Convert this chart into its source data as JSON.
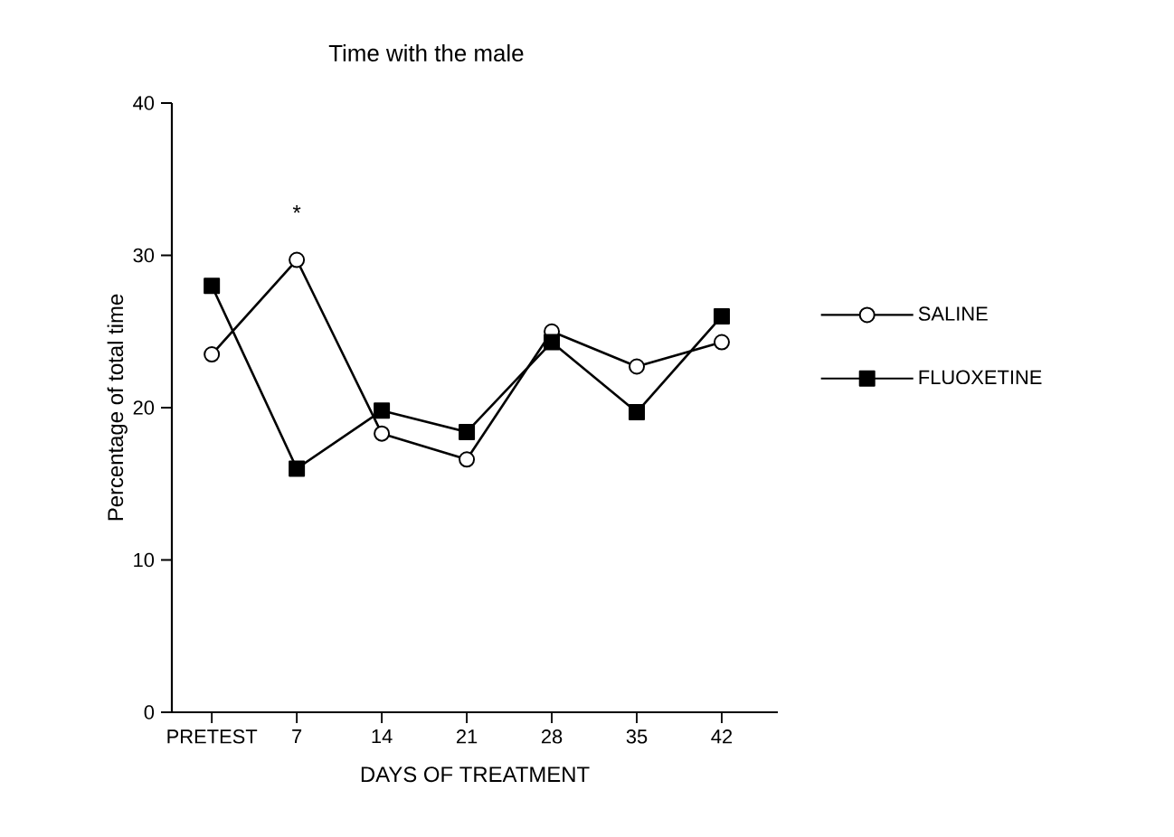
{
  "chart_data": {
    "type": "line",
    "title": "Time with the male",
    "xlabel": "DAYS OF TREATMENT",
    "ylabel": "Percentage of total time",
    "categories": [
      "PRETEST",
      "7",
      "14",
      "21",
      "28",
      "35",
      "42"
    ],
    "series": [
      {
        "name": "SALINE",
        "color": "#000000",
        "marker": "circle",
        "values": [
          23.5,
          29.7,
          18.3,
          16.6,
          25,
          22.7,
          24.3
        ]
      },
      {
        "name": "FLUOXETINE",
        "color": "#000000",
        "marker": "square",
        "values": [
          28,
          16,
          19.8,
          18.4,
          24.3,
          19.7,
          26
        ]
      }
    ],
    "ylim": [
      0,
      40
    ],
    "yticks": [
      0,
      10,
      20,
      30,
      40
    ],
    "grid": false,
    "legend": "right",
    "line_style": "solid",
    "annotations": [
      "*"
    ]
  }
}
